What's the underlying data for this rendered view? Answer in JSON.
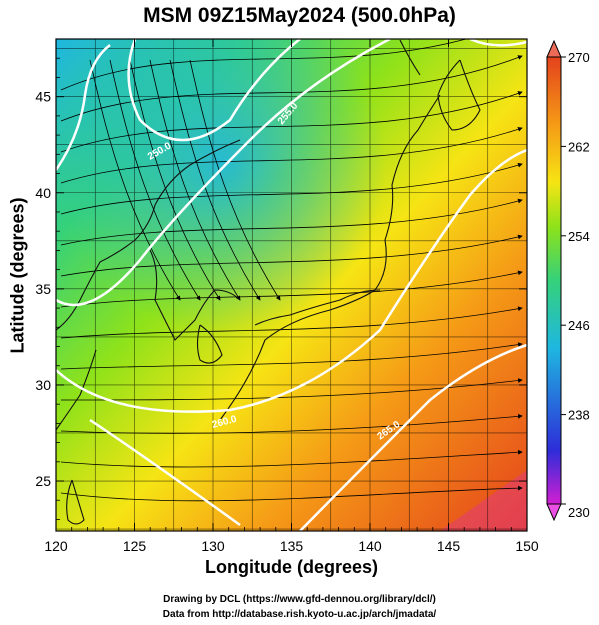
{
  "title": "MSM 09Z15May2024 (500.0hPa)",
  "x_axis": {
    "label": "Longitude (degrees)",
    "range": [
      120,
      150
    ],
    "ticks": [
      120,
      125,
      130,
      135,
      140,
      145,
      150
    ]
  },
  "y_axis": {
    "label": "Latitude  (degrees)",
    "range": [
      22.4,
      48
    ],
    "ticks": [
      25,
      30,
      35,
      40,
      45
    ]
  },
  "colorbar": {
    "min": 230,
    "max": 270,
    "tick_labels": [
      "270",
      "262",
      "254",
      "246",
      "238",
      "230"
    ],
    "colors": [
      "#d21fd2",
      "#2d2dd8",
      "#1fb7e0",
      "#35d17a",
      "#8ee21a",
      "#f6e414",
      "#f59a16",
      "#e4421c"
    ]
  },
  "contours": [
    {
      "label": "250.0",
      "color": "#ffffff"
    },
    {
      "label": "255.0",
      "color": "#ffffff"
    },
    {
      "label": "260.0",
      "color": "#ffffff"
    },
    {
      "label": "265.0",
      "color": "#ffffff"
    }
  ],
  "credits": {
    "line1": "Drawing by DCL (https://www.gfd-dennou.org/library/dcl/)",
    "line2": "Data from http://database.rish.kyoto-u.ac.jp/arch/jmadata/"
  }
}
